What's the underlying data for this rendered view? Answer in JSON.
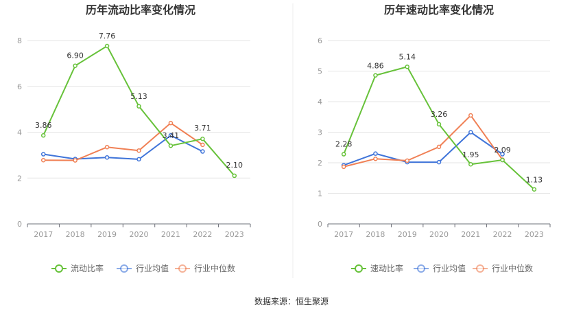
{
  "source": "数据来源：恒生聚源",
  "chart_data": [
    {
      "type": "line",
      "title": "历年流动比率变化情况",
      "categories": [
        "2017",
        "2018",
        "2019",
        "2020",
        "2021",
        "2022",
        "2023"
      ],
      "ylim": [
        0,
        8
      ],
      "yticks": [
        0,
        2,
        4,
        6,
        8
      ],
      "grid": true,
      "legend_position": "bottom",
      "series": [
        {
          "name": "流动比率",
          "color": "#67c23a",
          "values": [
            3.86,
            6.9,
            7.76,
            5.13,
            3.41,
            3.71,
            2.1
          ],
          "labels": [
            "3.86",
            "6.90",
            "7.76",
            "5.13",
            "3.41",
            "3.71",
            "2.10"
          ]
        },
        {
          "name": "行业均值",
          "color": "#3f74d9",
          "values": [
            3.04,
            2.83,
            2.9,
            2.82,
            3.86,
            3.16,
            null
          ]
        },
        {
          "name": "行业中位数",
          "color": "#f08055",
          "values": [
            2.78,
            2.77,
            3.35,
            3.2,
            4.4,
            3.45,
            null
          ]
        }
      ]
    },
    {
      "type": "line",
      "title": "历年速动比率变化情况",
      "categories": [
        "2017",
        "2018",
        "2019",
        "2020",
        "2021",
        "2022",
        "2023"
      ],
      "ylim": [
        0,
        6
      ],
      "yticks": [
        0,
        1,
        2,
        3,
        4,
        5,
        6
      ],
      "grid": true,
      "legend_position": "bottom",
      "series": [
        {
          "name": "速动比率",
          "color": "#67c23a",
          "values": [
            2.28,
            4.86,
            5.14,
            3.26,
            1.95,
            2.09,
            1.13
          ],
          "labels": [
            "2.28",
            "4.86",
            "5.14",
            "3.26",
            "1.95",
            "2.09",
            "1.13"
          ]
        },
        {
          "name": "行业均值",
          "color": "#3f74d9",
          "values": [
            1.92,
            2.3,
            2.02,
            2.02,
            3.0,
            2.28,
            null
          ]
        },
        {
          "name": "行业中位数",
          "color": "#f08055",
          "values": [
            1.87,
            2.13,
            2.07,
            2.52,
            3.55,
            2.1,
            null
          ]
        }
      ]
    }
  ]
}
